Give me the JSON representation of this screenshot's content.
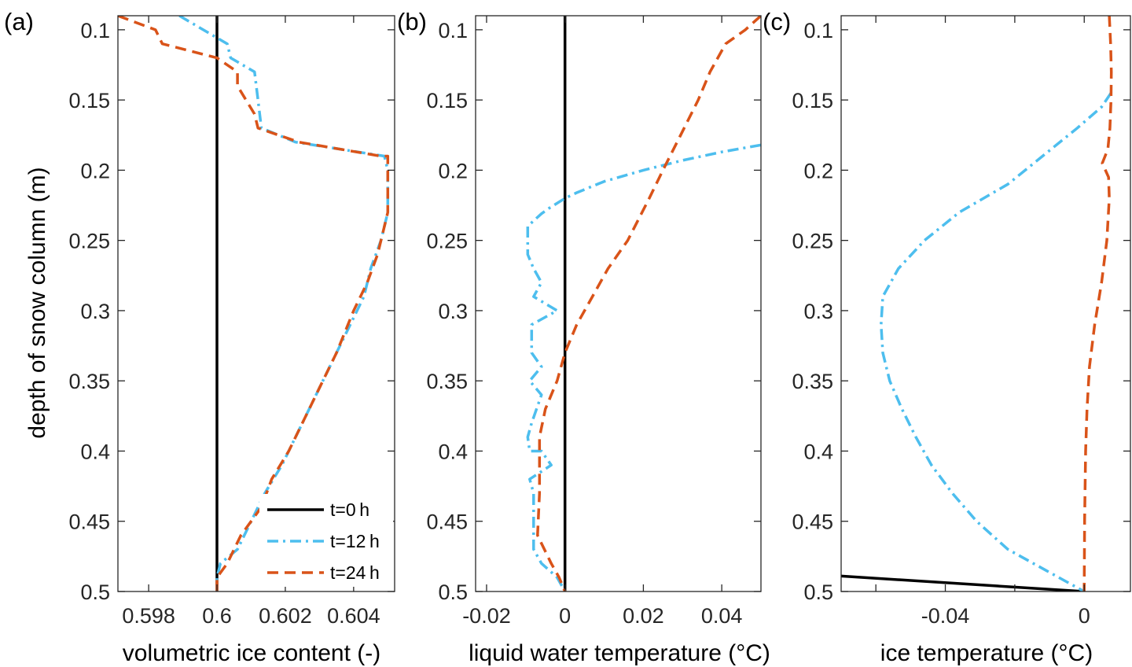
{
  "shared": {
    "ylabel": "depth of snow column (m)",
    "ylim": [
      0.09,
      0.5
    ],
    "yticks": [
      0.1,
      0.15,
      0.2,
      0.25,
      0.3,
      0.35,
      0.4,
      0.45,
      0.5
    ],
    "ytick_labels": [
      "0.1",
      "0.15",
      "0.2",
      "0.25",
      "0.3",
      "0.35",
      "0.4",
      "0.45",
      "0.5"
    ],
    "y_reversed": true
  },
  "legend": {
    "placement": "bottom-right of panel (a)",
    "entries": [
      "t=0 h",
      "t=12 h",
      "t=24 h"
    ]
  },
  "colors": {
    "t0": "#000000",
    "t12": "#4DBEEE",
    "t24": "#D95319"
  },
  "chart_data": [
    {
      "panel": "(a)",
      "type": "line",
      "xlabel": "volumetric ice content (-)",
      "ylabel": "depth of snow column (m)",
      "xlim": [
        0.5971,
        0.6052
      ],
      "ylim": [
        0.09,
        0.5
      ],
      "xticks": [
        0.598,
        0.6,
        0.602,
        0.604
      ],
      "xtick_labels": [
        "0.598",
        "0.6",
        "0.602",
        "0.604"
      ],
      "series": [
        {
          "name": "t=0 h",
          "style": "solid",
          "color": "#000000",
          "points": [
            [
              0.6,
              0.09
            ],
            [
              0.6,
              0.5
            ]
          ]
        },
        {
          "name": "t=12 h",
          "style": "dashdot",
          "color": "#4DBEEE",
          "points": [
            [
              0.5989,
              0.09
            ],
            [
              0.5996,
              0.1
            ],
            [
              0.6003,
              0.11
            ],
            [
              0.6004,
              0.12
            ],
            [
              0.6011,
              0.13
            ],
            [
              0.6012,
              0.15
            ],
            [
              0.6013,
              0.17
            ],
            [
              0.6023,
              0.18
            ],
            [
              0.6049,
              0.19
            ],
            [
              0.605,
              0.2
            ],
            [
              0.605,
              0.23
            ],
            [
              0.6048,
              0.25
            ],
            [
              0.6045,
              0.27
            ],
            [
              0.6043,
              0.29
            ],
            [
              0.6039,
              0.31
            ],
            [
              0.6035,
              0.33
            ],
            [
              0.6031,
              0.35
            ],
            [
              0.6027,
              0.37
            ],
            [
              0.6023,
              0.39
            ],
            [
              0.6019,
              0.41
            ],
            [
              0.6014,
              0.43
            ],
            [
              0.601,
              0.45
            ],
            [
              0.6006,
              0.47
            ],
            [
              0.6001,
              0.48
            ],
            [
              0.6,
              0.49
            ],
            [
              0.6,
              0.5
            ]
          ]
        },
        {
          "name": "t=24 h",
          "style": "dashed",
          "color": "#D95319",
          "points": [
            [
              0.5971,
              0.09
            ],
            [
              0.5982,
              0.1
            ],
            [
              0.5984,
              0.11
            ],
            [
              0.6,
              0.12
            ],
            [
              0.6006,
              0.13
            ],
            [
              0.6006,
              0.14
            ],
            [
              0.6011,
              0.16
            ],
            [
              0.6012,
              0.17
            ],
            [
              0.6024,
              0.18
            ],
            [
              0.6048,
              0.19
            ],
            [
              0.605,
              0.19
            ],
            [
              0.605,
              0.23
            ],
            [
              0.6047,
              0.26
            ],
            [
              0.6044,
              0.28
            ],
            [
              0.604,
              0.3
            ],
            [
              0.6035,
              0.33
            ],
            [
              0.6031,
              0.35
            ],
            [
              0.6027,
              0.37
            ],
            [
              0.6021,
              0.4
            ],
            [
              0.6016,
              0.42
            ],
            [
              0.6013,
              0.44
            ],
            [
              0.6007,
              0.46
            ],
            [
              0.6003,
              0.48
            ],
            [
              0.6,
              0.49
            ],
            [
              0.6,
              0.5
            ]
          ]
        }
      ]
    },
    {
      "panel": "(b)",
      "type": "line",
      "xlabel": "liquid water temperature (°C)",
      "ylabel": "",
      "xlim": [
        -0.0228,
        0.05
      ],
      "ylim": [
        0.09,
        0.5
      ],
      "xticks": [
        -0.02,
        0,
        0.02,
        0.04
      ],
      "xtick_labels": [
        "-0.02",
        "0",
        "0.02",
        "0.04"
      ],
      "series": [
        {
          "name": "t=0 h",
          "style": "solid",
          "color": "#000000",
          "points": [
            [
              0,
              0.09
            ],
            [
              0,
              0.5
            ]
          ]
        },
        {
          "name": "t=12 h",
          "style": "dashdot",
          "color": "#4DBEEE",
          "points": [
            [
              0.05,
              0.182
            ],
            [
              0.04,
              0.187
            ],
            [
              0.03,
              0.193
            ],
            [
              0.02,
              0.2
            ],
            [
              0.01,
              0.208
            ],
            [
              0.003,
              0.216
            ],
            [
              0,
              0.22
            ],
            [
              -0.004,
              0.227
            ],
            [
              -0.006,
              0.231
            ],
            [
              -0.008,
              0.236
            ],
            [
              -0.0095,
              0.24
            ],
            [
              -0.0095,
              0.26
            ],
            [
              -0.008,
              0.27
            ],
            [
              -0.006,
              0.28
            ],
            [
              -0.008,
              0.29
            ],
            [
              -0.002,
              0.3
            ],
            [
              -0.0085,
              0.31
            ],
            [
              -0.0085,
              0.33
            ],
            [
              -0.006,
              0.34
            ],
            [
              -0.009,
              0.35
            ],
            [
              -0.006,
              0.36
            ],
            [
              -0.0085,
              0.38
            ],
            [
              -0.0095,
              0.39
            ],
            [
              -0.009,
              0.4
            ],
            [
              -0.006,
              0.4
            ],
            [
              -0.0035,
              0.41
            ],
            [
              -0.009,
              0.42
            ],
            [
              -0.008,
              0.43
            ],
            [
              -0.008,
              0.47
            ],
            [
              -0.006,
              0.48
            ],
            [
              -0.002,
              0.49
            ],
            [
              0,
              0.5
            ]
          ]
        },
        {
          "name": "t=24 h",
          "style": "dashed",
          "color": "#D95319",
          "points": [
            [
              0.05,
              0.09
            ],
            [
              0.046,
              0.1
            ],
            [
              0.041,
              0.11
            ],
            [
              0.037,
              0.13
            ],
            [
              0.034,
              0.15
            ],
            [
              0.0295,
              0.175
            ],
            [
              0.025,
              0.2
            ],
            [
              0.0215,
              0.22
            ],
            [
              0.016,
              0.25
            ],
            [
              0.011,
              0.27
            ],
            [
              0.007,
              0.29
            ],
            [
              0.003,
              0.31
            ],
            [
              0.0015,
              0.32
            ],
            [
              0,
              0.33
            ],
            [
              -0.002,
              0.35
            ],
            [
              -0.005,
              0.37
            ],
            [
              -0.0065,
              0.39
            ],
            [
              -0.0065,
              0.43
            ],
            [
              -0.007,
              0.46
            ],
            [
              -0.0035,
              0.48
            ],
            [
              -0.0015,
              0.49
            ],
            [
              0,
              0.5
            ]
          ]
        }
      ]
    },
    {
      "panel": "(c)",
      "type": "line",
      "xlabel": "ice temperature (°C)",
      "ylabel": "",
      "xlim": [
        -0.07,
        0.0133
      ],
      "ylim": [
        0.09,
        0.5
      ],
      "xticks": [
        -0.06,
        -0.04,
        -0.02,
        0
      ],
      "xtick_labels": [
        "",
        "-0.04",
        "",
        "0"
      ],
      "series": [
        {
          "name": "t=0 h",
          "style": "solid",
          "color": "#000000",
          "points": [
            [
              -0.07,
              0.489
            ],
            [
              0,
              0.5
            ]
          ]
        },
        {
          "name": "t=12 h",
          "style": "dashdot",
          "color": "#4DBEEE",
          "points": [
            [
              0.0077,
              0.145
            ],
            [
              0.005,
              0.155
            ],
            [
              -0.002,
              0.17
            ],
            [
              -0.012,
              0.19
            ],
            [
              -0.022,
              0.21
            ],
            [
              -0.036,
              0.23
            ],
            [
              -0.046,
              0.25
            ],
            [
              -0.0535,
              0.27
            ],
            [
              -0.058,
              0.29
            ],
            [
              -0.0585,
              0.31
            ],
            [
              -0.058,
              0.33
            ],
            [
              -0.056,
              0.35
            ],
            [
              -0.0525,
              0.37
            ],
            [
              -0.0485,
              0.39
            ],
            [
              -0.044,
              0.41
            ],
            [
              -0.038,
              0.43
            ],
            [
              -0.031,
              0.45
            ],
            [
              -0.022,
              0.47
            ],
            [
              -0.011,
              0.485
            ],
            [
              0,
              0.5
            ]
          ]
        },
        {
          "name": "t=24 h",
          "style": "dashed",
          "color": "#D95319",
          "points": [
            [
              0.0072,
              0.09
            ],
            [
              0.0076,
              0.11
            ],
            [
              0.0078,
              0.13
            ],
            [
              0.0077,
              0.15
            ],
            [
              0.0074,
              0.17
            ],
            [
              0.0068,
              0.185
            ],
            [
              0.0052,
              0.195
            ],
            [
              0.007,
              0.205
            ],
            [
              0.0072,
              0.22
            ],
            [
              0.0065,
              0.25
            ],
            [
              0.005,
              0.28
            ],
            [
              0.003,
              0.31
            ],
            [
              0.0015,
              0.34
            ],
            [
              0.0008,
              0.37
            ],
            [
              0.0004,
              0.4
            ],
            [
              0.0001,
              0.45
            ],
            [
              0,
              0.5
            ]
          ]
        }
      ]
    }
  ]
}
